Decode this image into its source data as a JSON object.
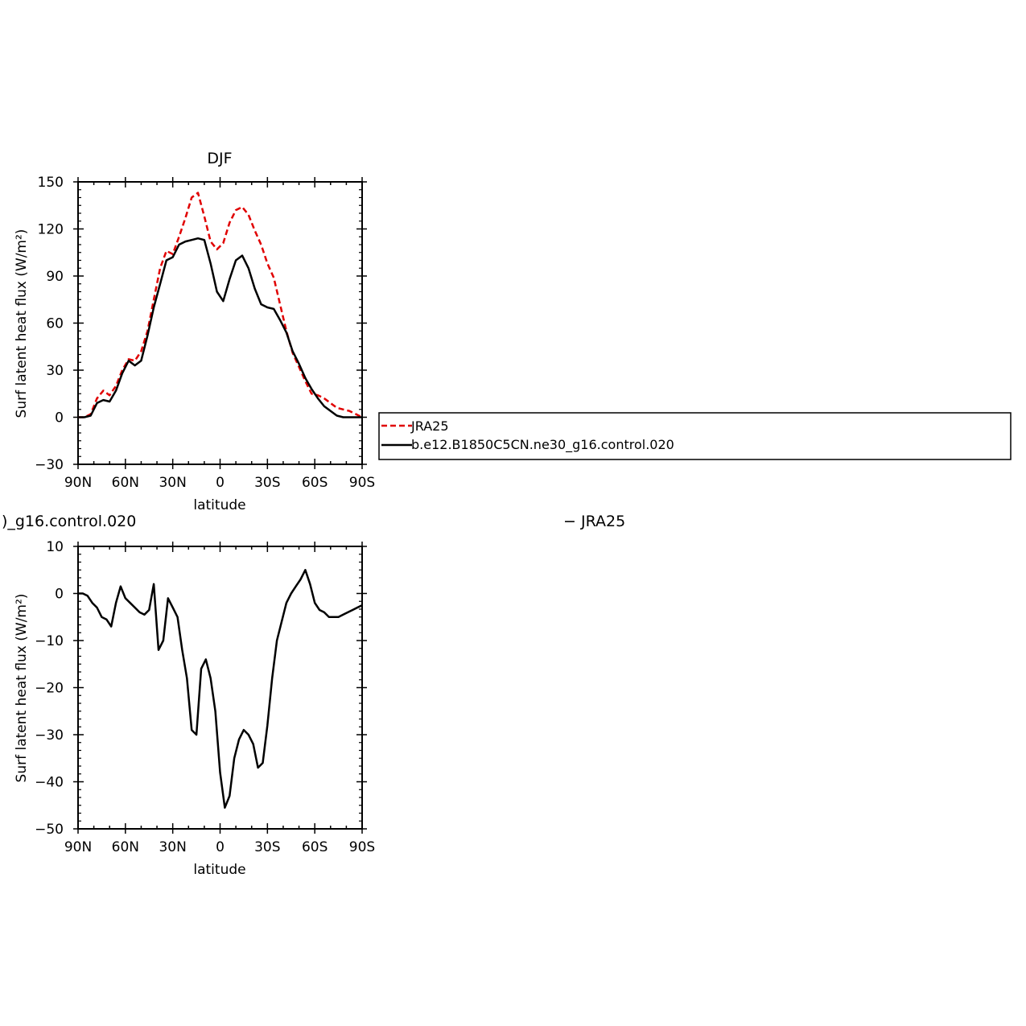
{
  "chart_data": [
    {
      "type": "line",
      "title": "DJF",
      "xlabel": "latitude",
      "ylabel": "Surf latent heat flux (W/m²)",
      "ylim": [
        -30,
        150
      ],
      "yticks": [
        "−30",
        "0",
        "30",
        "60",
        "90",
        "120",
        "150"
      ],
      "xticks": [
        "90N",
        "60N",
        "30N",
        "0",
        "30S",
        "60S",
        "90S"
      ],
      "x": [
        -90,
        -86,
        -82,
        -78,
        -74,
        -70,
        -66,
        -62,
        -58,
        -54,
        -50,
        -46,
        -42,
        -38,
        -34,
        -30,
        -26,
        -22,
        -18,
        -14,
        -10,
        -6,
        -2,
        2,
        6,
        10,
        14,
        18,
        22,
        26,
        30,
        34,
        38,
        42,
        46,
        50,
        54,
        58,
        62,
        66,
        70,
        74,
        78,
        82,
        86,
        90
      ],
      "series": [
        {
          "name": "JRA25",
          "color": "#e00000",
          "dash": true,
          "values": [
            0,
            0,
            2,
            12,
            17,
            14,
            20,
            30,
            37,
            36,
            42,
            55,
            75,
            95,
            106,
            104,
            115,
            127,
            140,
            143,
            128,
            112,
            107,
            111,
            124,
            132,
            134,
            129,
            119,
            110,
            98,
            89,
            72,
            55,
            41,
            32,
            23,
            15,
            14,
            12,
            9,
            6,
            5,
            4,
            2,
            0
          ]
        },
        {
          "name": "b.e12.B1850C5CN.ne30_g16.control.020",
          "color": "#000000",
          "dash": false,
          "values": [
            0,
            0,
            1,
            9,
            11,
            10,
            17,
            28,
            36,
            33,
            36,
            52,
            70,
            85,
            100,
            102,
            110,
            112,
            113,
            114,
            113,
            98,
            80,
            74,
            88,
            100,
            103,
            95,
            82,
            72,
            70,
            69,
            62,
            54,
            42,
            34,
            25,
            18,
            12,
            7,
            4,
            1,
            0,
            0,
            0,
            0
          ]
        }
      ]
    },
    {
      "type": "line",
      "title": ")_g16.control.020",
      "title_right": "− JRA25",
      "xlabel": "latitude",
      "ylabel": "Surf latent heat flux (W/m²)",
      "ylim": [
        -50,
        10
      ],
      "yticks": [
        "−50",
        "−40",
        "−30",
        "−20",
        "−10",
        "0",
        "10"
      ],
      "xticks": [
        "90N",
        "60N",
        "30N",
        "0",
        "30S",
        "60S",
        "90S"
      ],
      "x": [
        -90,
        -87,
        -84,
        -81,
        -78,
        -75,
        -72,
        -69,
        -66,
        -63,
        -60,
        -57,
        -54,
        -51,
        -48,
        -45,
        -42,
        -39,
        -36,
        -33,
        -30,
        -27,
        -24,
        -21,
        -18,
        -15,
        -12,
        -9,
        -6,
        -3,
        0,
        3,
        6,
        9,
        12,
        15,
        18,
        21,
        24,
        27,
        30,
        33,
        36,
        39,
        42,
        45,
        48,
        51,
        54,
        57,
        60,
        63,
        66,
        69,
        72,
        75,
        78,
        81,
        84,
        87,
        90
      ],
      "series": [
        {
          "name": "",
          "color": "#000000",
          "dash": false,
          "values": [
            0,
            0,
            -0.5,
            -2,
            -3,
            -5,
            -5.5,
            -7,
            -2,
            1.5,
            -1,
            -2,
            -3,
            -4,
            -4.5,
            -3.5,
            2,
            -12,
            -10,
            -1,
            -3,
            -5,
            -12,
            -18,
            -29,
            -30,
            -16,
            -14,
            -18,
            -25,
            -38,
            -45.5,
            -43,
            -35,
            -31,
            -29,
            -30,
            -32,
            -37,
            -36,
            -28,
            -18,
            -10,
            -6,
            -2,
            0,
            1.5,
            3,
            5,
            2,
            -2,
            -3.5,
            -4,
            -5,
            -5,
            -5,
            -4.5,
            -4,
            -3.5,
            -3,
            -2.5
          ]
        }
      ]
    }
  ],
  "legend": {
    "entries": [
      {
        "label": "JRA25",
        "color": "#e00000",
        "dash": true
      },
      {
        "label": "b.e12.B1850C5CN.ne30_g16.control.020",
        "color": "#000000",
        "dash": false
      }
    ]
  }
}
